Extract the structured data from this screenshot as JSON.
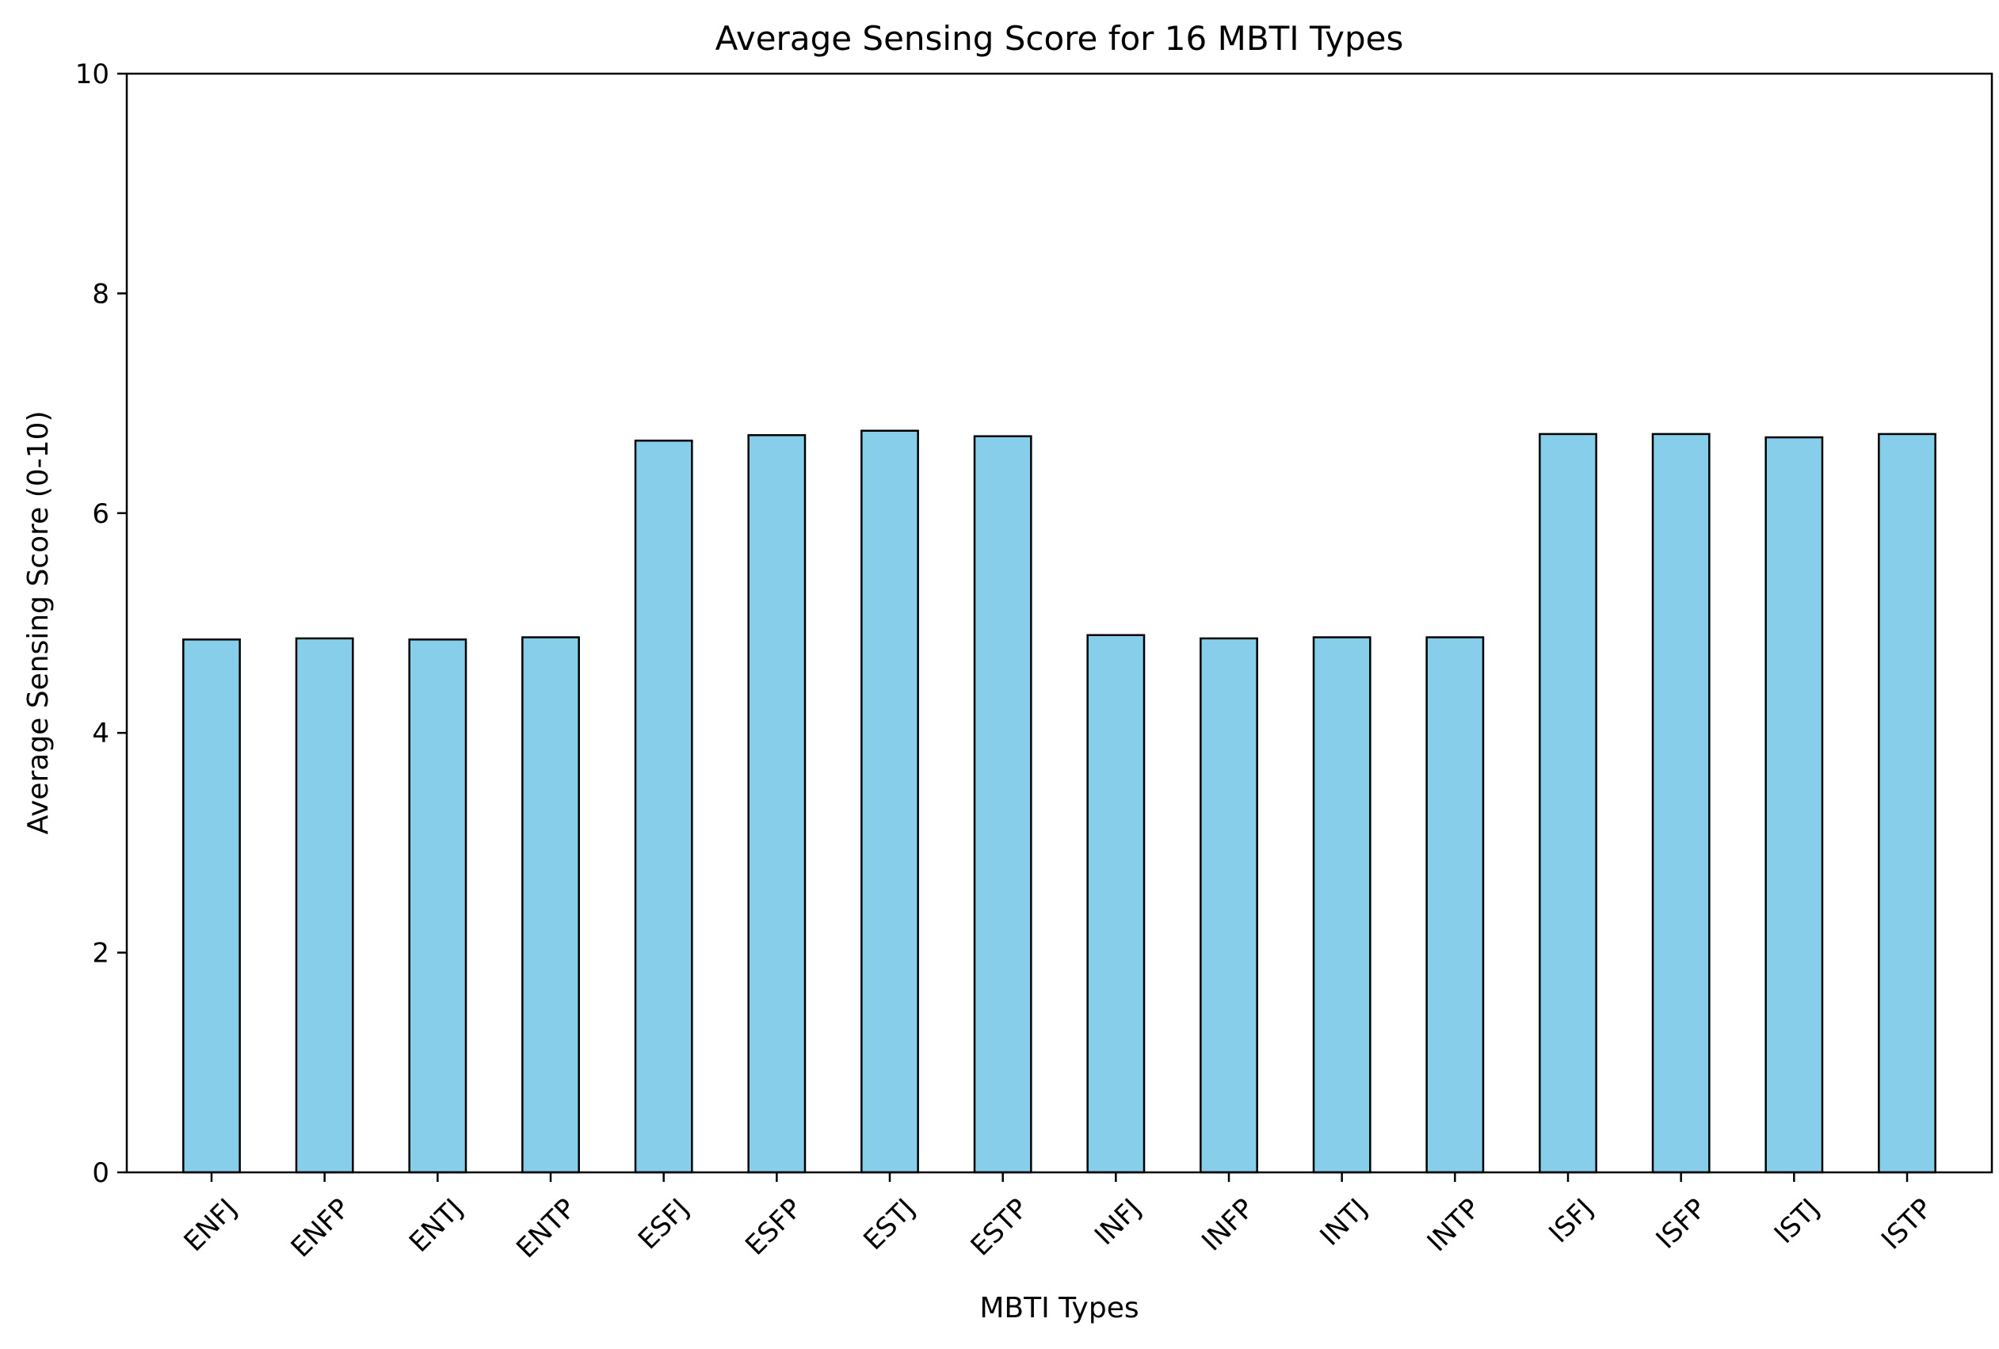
{
  "chart_data": {
    "type": "bar",
    "title": "Average Sensing Score for 16 MBTI Types",
    "xlabel": "MBTI Types",
    "ylabel": "Average Sensing Score (0-10)",
    "ylim": [
      0,
      10
    ],
    "yticks": [
      "0",
      "2",
      "4",
      "6",
      "8",
      "10"
    ],
    "categories": [
      "ENFJ",
      "ENFP",
      "ENTJ",
      "ENTP",
      "ESFJ",
      "ESFP",
      "ESTJ",
      "ESTP",
      "INFJ",
      "INFP",
      "INTJ",
      "INTP",
      "ISFJ",
      "ISFP",
      "ISTJ",
      "ISTP"
    ],
    "values": [
      4.85,
      4.86,
      4.85,
      4.87,
      6.66,
      6.71,
      6.75,
      6.7,
      4.89,
      4.86,
      4.87,
      4.87,
      6.72,
      6.72,
      6.69,
      6.72
    ],
    "bar_color": "#87CEEB",
    "edge_color": "#000000",
    "grid": false,
    "legend": "none"
  }
}
